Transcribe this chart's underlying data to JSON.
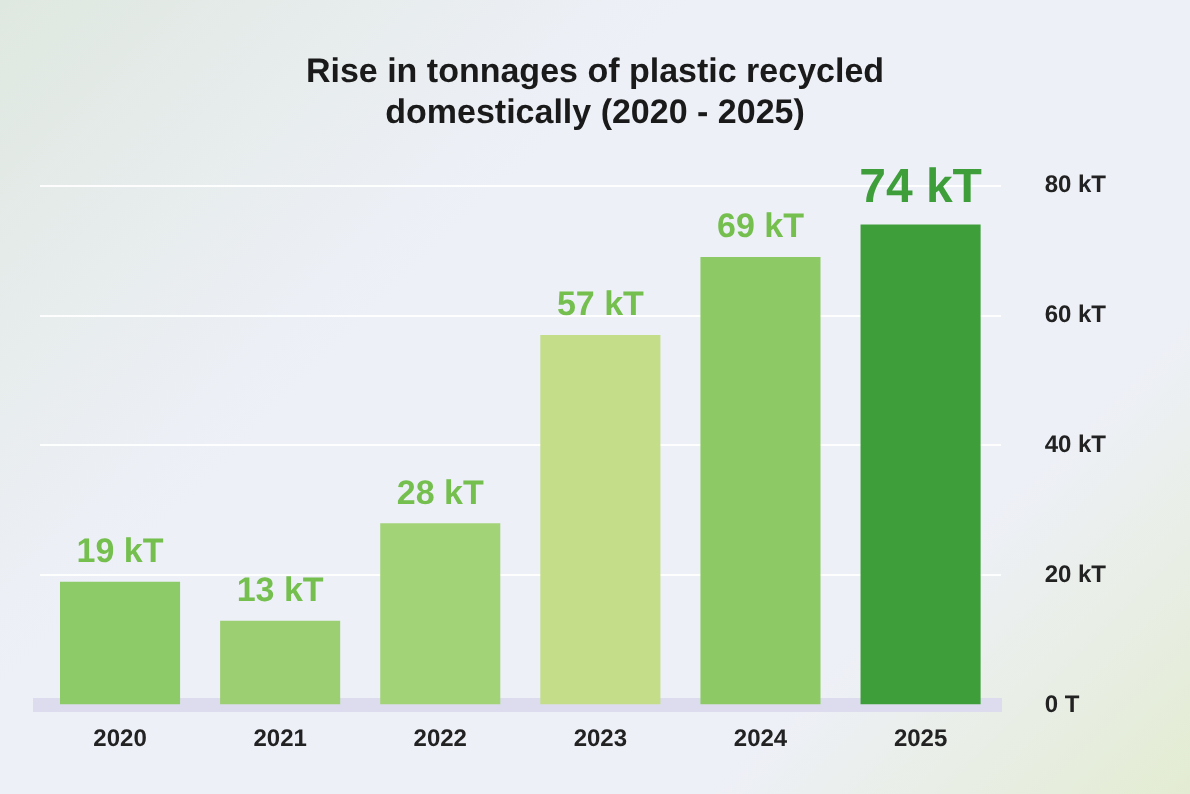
{
  "chart_data": {
    "type": "bar",
    "title": "Rise in tonnages of plastic recycled domestically (2020 - 2025)",
    "categories": [
      "2020",
      "2021",
      "2022",
      "2023",
      "2024",
      "2025"
    ],
    "values": [
      19,
      13,
      28,
      57,
      69,
      74
    ],
    "value_labels": [
      "19 kT",
      "13 kT",
      "28 kT",
      "57 kT",
      "69 kT",
      "74 kT"
    ],
    "colors": [
      "#8ccb68",
      "#9ccf72",
      "#a3d377",
      "#c3dd88",
      "#8dca66",
      "#3e9f3a"
    ],
    "ylim": [
      0,
      80
    ],
    "yticks": [
      {
        "value": 0,
        "label": "0 T"
      },
      {
        "value": 20,
        "label": "20 kT"
      },
      {
        "value": 40,
        "label": "40 kT"
      },
      {
        "value": 60,
        "label": "60 kT"
      },
      {
        "value": 80,
        "label": "80 kT"
      }
    ],
    "grid": "y",
    "legend": false
  }
}
